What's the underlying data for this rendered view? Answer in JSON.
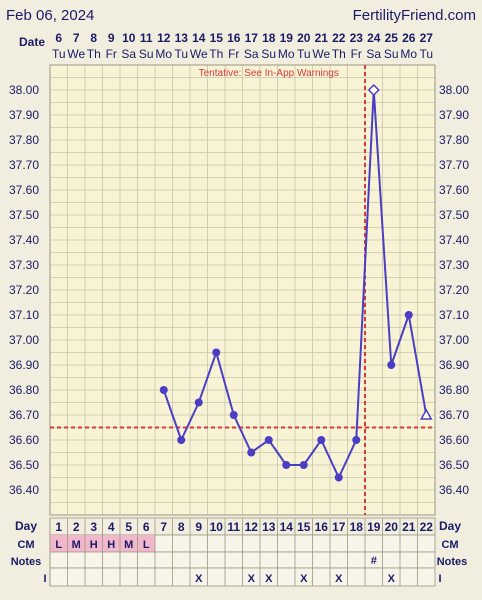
{
  "header": {
    "date_title": "Feb 06, 2024",
    "site_name": "FertilityFriend.com"
  },
  "labels": {
    "date_row": "Date",
    "day_row": "Day",
    "cm_row": "CM",
    "notes_row": "Notes",
    "i_row": "I"
  },
  "chart_data": {
    "type": "line",
    "tentative_note": "Tentative: See In-App Warnings",
    "ylim": [
      36.3,
      38.1
    ],
    "yticks": [
      "36.40",
      "36.50",
      "36.60",
      "36.70",
      "36.80",
      "36.90",
      "37.00",
      "37.10",
      "37.20",
      "37.30",
      "37.40",
      "37.50",
      "37.60",
      "37.70",
      "37.80",
      "37.90",
      "38.00"
    ],
    "dates": [
      "6",
      "7",
      "8",
      "9",
      "10",
      "11",
      "12",
      "13",
      "14",
      "15",
      "16",
      "17",
      "18",
      "19",
      "20",
      "21",
      "22",
      "23",
      "24",
      "25",
      "26",
      "27"
    ],
    "weekdays": [
      "Tu",
      "We",
      "Th",
      "Fr",
      "Sa",
      "Su",
      "Mo",
      "Tu",
      "We",
      "Th",
      "Fr",
      "Sa",
      "Su",
      "Mo",
      "Tu",
      "We",
      "Th",
      "Fr",
      "Sa",
      "Su",
      "Mo",
      "Tu"
    ],
    "cycle_days": [
      "1",
      "2",
      "3",
      "4",
      "5",
      "6",
      "7",
      "8",
      "9",
      "10",
      "11",
      "12",
      "13",
      "14",
      "15",
      "16",
      "17",
      "18",
      "19",
      "20",
      "21",
      "22"
    ],
    "temperatures": [
      null,
      null,
      null,
      null,
      null,
      null,
      36.8,
      36.6,
      36.75,
      36.95,
      36.7,
      36.55,
      36.6,
      36.5,
      36.5,
      36.6,
      36.45,
      36.6,
      38.0,
      36.9,
      37.1,
      36.7
    ],
    "open_markers": [
      19,
      22
    ],
    "coverline": 36.65,
    "ovulation_day": 18,
    "cm": [
      "L",
      "M",
      "H",
      "H",
      "M",
      "L",
      "",
      "",
      "",
      "",
      "",
      "",
      "",
      "",
      "",
      "",
      "",
      "",
      "",
      "",
      "",
      ""
    ],
    "notes": [
      "",
      "",
      "",
      "",
      "",
      "",
      "",
      "",
      "",
      "",
      "",
      "",
      "",
      "",
      "",
      "",
      "",
      "",
      "#",
      "",
      "",
      ""
    ],
    "intercourse": [
      "",
      "",
      "",
      "",
      "",
      "",
      "",
      "",
      "X",
      "",
      "",
      "X",
      "X",
      "",
      "X",
      "",
      "X",
      "",
      "",
      "X",
      "",
      ""
    ]
  },
  "colors": {
    "background": "#f2eedf",
    "plot_bg": "#f7f3d4",
    "grid": "#c9c6ae",
    "line": "#4b3ec4",
    "coverline": "#d83a3a",
    "cm_fill": "#f1b8cb",
    "label": "#1a1a66"
  }
}
